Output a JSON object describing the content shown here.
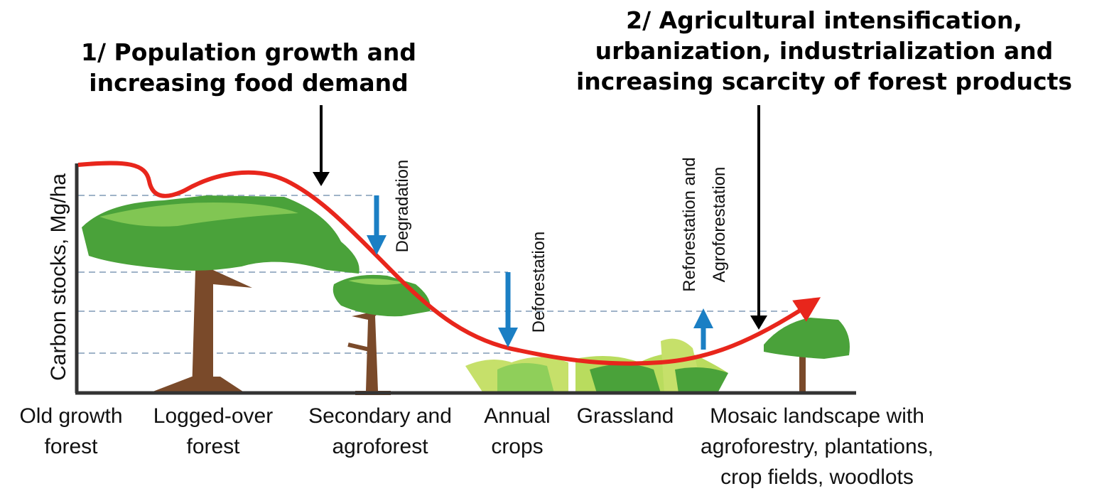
{
  "annotations": [
    {
      "lines": [
        "1/ Population growth and",
        "increasing food demand"
      ]
    },
    {
      "lines": [
        "2/ Agricultural intensification,",
        "urbanization, industrialization and",
        "increasing scarcity of forest products"
      ]
    }
  ],
  "y_axis_label": "Carbon stocks, Mg/ha",
  "transitions": [
    {
      "lines": [
        "Degradation"
      ]
    },
    {
      "lines": [
        "Deforestation"
      ]
    },
    {
      "lines": [
        "Reforestation and",
        "Agroforestation"
      ]
    }
  ],
  "stages": [
    {
      "lines": [
        "Old growth",
        "forest"
      ]
    },
    {
      "lines": [
        "Logged-over",
        "forest"
      ]
    },
    {
      "lines": [
        "Secondary and",
        "agroforest"
      ]
    },
    {
      "lines": [
        "Annual",
        "crops"
      ]
    },
    {
      "lines": [
        "Grassland"
      ]
    },
    {
      "lines": [
        "Mosaic landscape with",
        "agroforestry, plantations,",
        "crop fields, woodlots"
      ]
    }
  ]
}
